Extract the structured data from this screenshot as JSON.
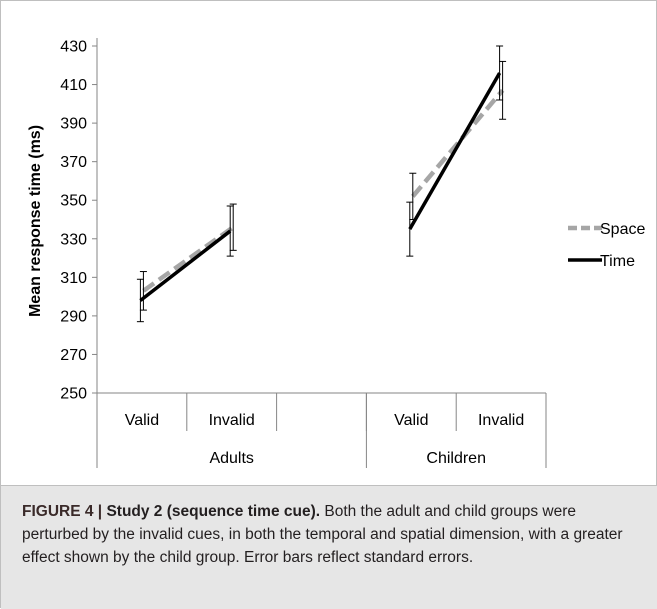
{
  "chart_data": {
    "type": "line",
    "ylabel": "Mean response time (ms)",
    "ylim": [
      250,
      430
    ],
    "yticks": [
      250,
      270,
      290,
      310,
      330,
      350,
      370,
      390,
      410,
      430
    ],
    "groups": [
      {
        "name": "Adults",
        "categories": [
          "Valid",
          "Invalid"
        ]
      },
      {
        "name": "Children",
        "categories": [
          "Valid",
          "Invalid"
        ]
      }
    ],
    "series": [
      {
        "name": "Space",
        "style": "dashed",
        "color": "#a6a6a6",
        "values": [
          [
            303,
            336
          ],
          [
            352,
            407
          ]
        ],
        "errors": [
          [
            10,
            12
          ],
          [
            12,
            15
          ]
        ]
      },
      {
        "name": "Time",
        "style": "solid",
        "color": "#000000",
        "values": [
          [
            298,
            334
          ],
          [
            335,
            416
          ]
        ],
        "errors": [
          [
            11,
            13
          ],
          [
            14,
            14
          ]
        ]
      }
    ],
    "legend_position": "right",
    "grid": false
  },
  "caption": {
    "label": "FIGURE 4 | ",
    "title": "Study 2 (sequence time cue).",
    "text": " Both the adult and child groups were perturbed by the invalid cues, in both the temporal and spatial dimension, with a greater effect shown by the child group. Error bars reflect standard errors."
  }
}
